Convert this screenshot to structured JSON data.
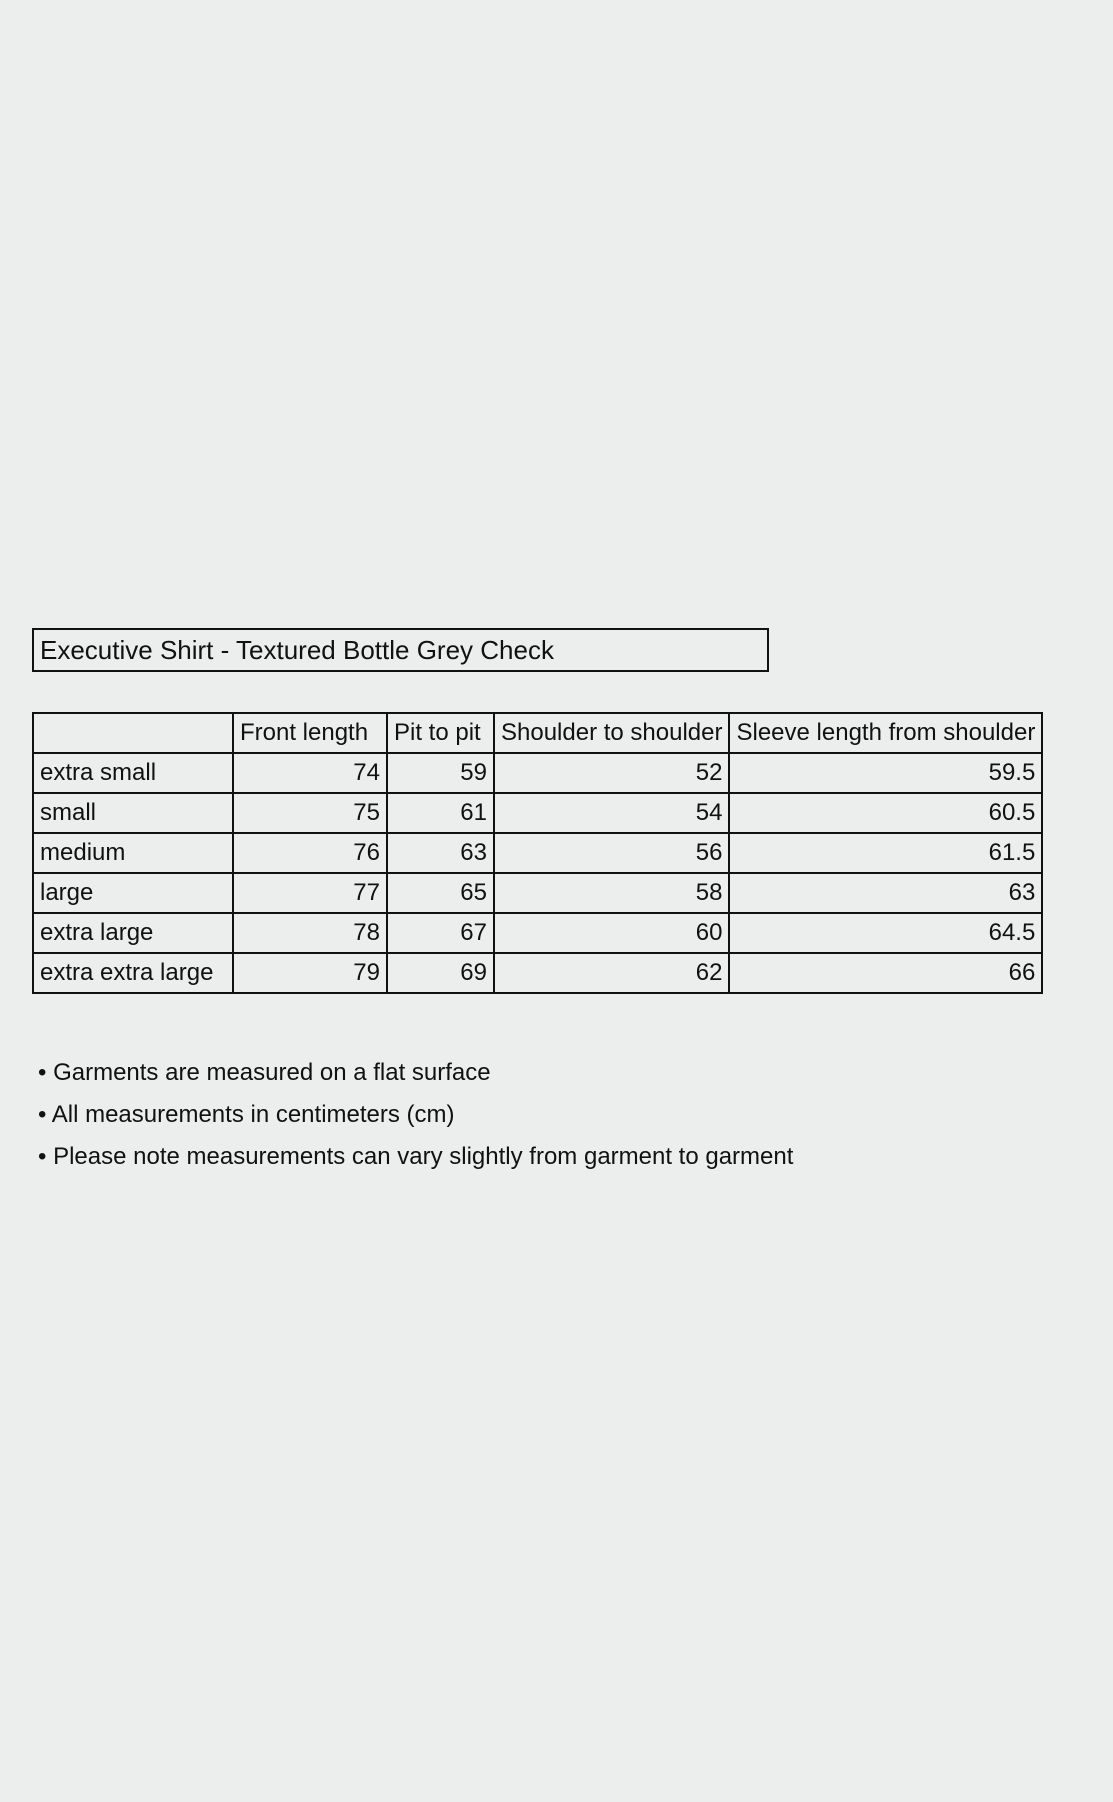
{
  "title": "Executive Shirt - Textured Bottle Grey Check",
  "table": {
    "header": [
      "Front length",
      "Pit to pit",
      "Shoulder to shoulder",
      "Sleeve length from shoulder"
    ],
    "rows": [
      [
        "extra small",
        74,
        59,
        52,
        59.5
      ],
      [
        "small",
        75,
        61,
        54,
        60.5
      ],
      [
        "medium",
        76,
        63,
        56,
        61.5
      ],
      [
        "large",
        77,
        65,
        58,
        63
      ],
      [
        "extra large",
        78,
        67,
        60,
        64.5
      ],
      [
        "extra extra large",
        79,
        69,
        62,
        66
      ]
    ]
  },
  "notes": [
    "• Garments are measured on a flat surface",
    "• All measurements in centimeters (cm)",
    "• Please note measurements can vary slightly from garment to garment"
  ]
}
